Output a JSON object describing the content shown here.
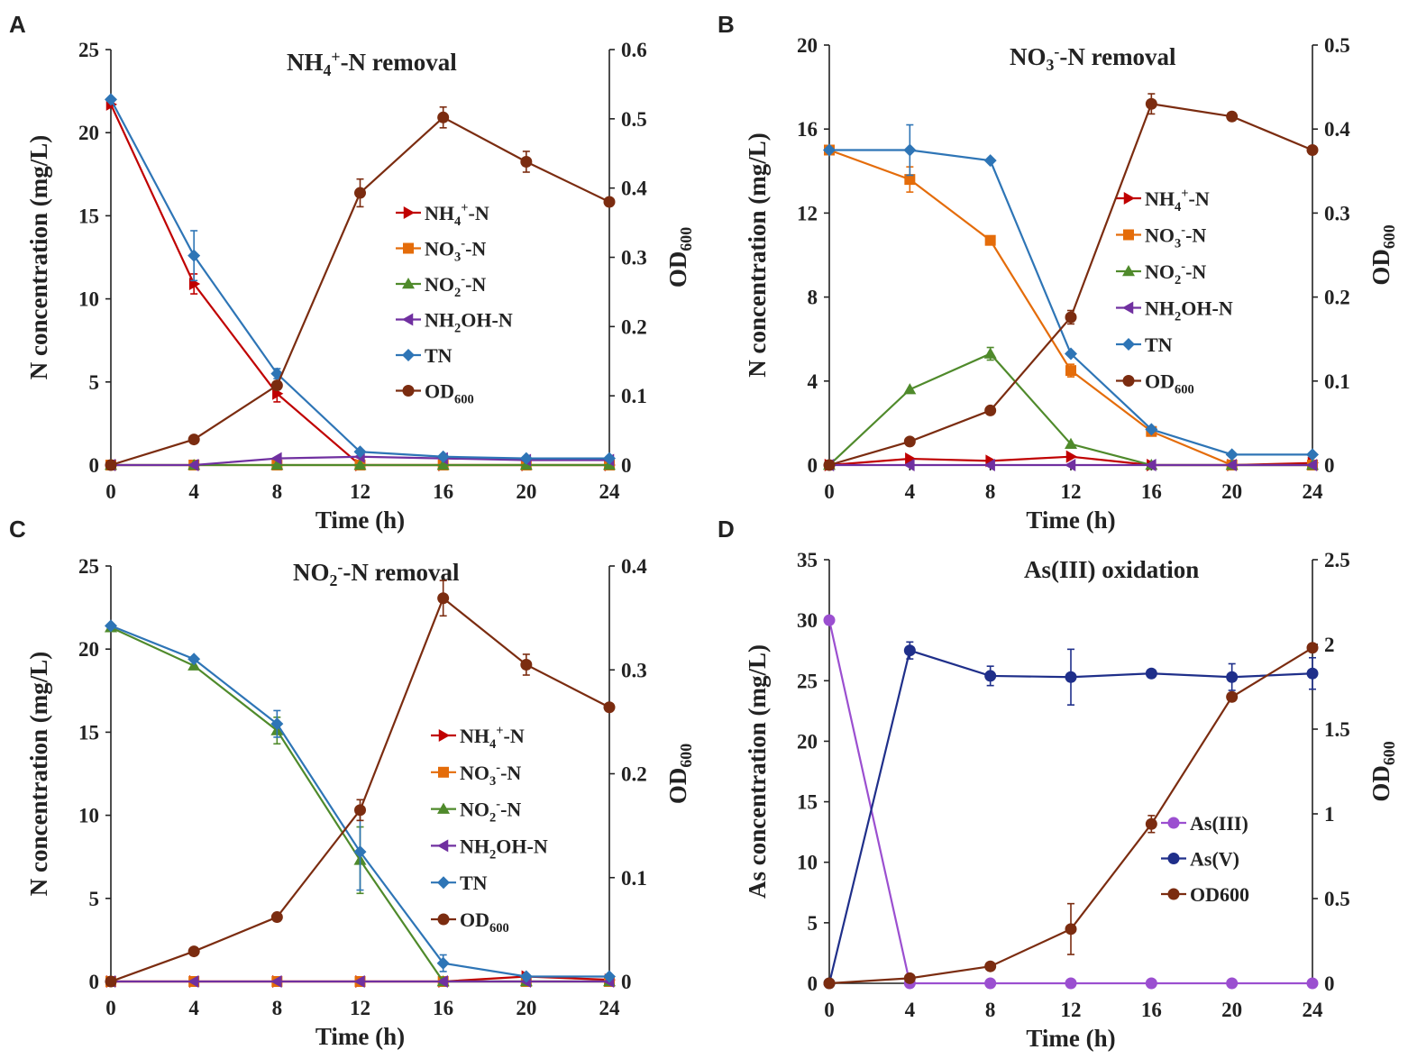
{
  "chart_data": [
    {
      "panel": "A",
      "type": "line",
      "title": "NH4+-N removal",
      "title_parts": [
        [
          "NH",
          ""
        ],
        [
          "4",
          "sub"
        ],
        [
          "+",
          "sup"
        ],
        [
          "-N removal",
          ""
        ]
      ],
      "x": [
        0,
        4,
        8,
        12,
        16,
        20,
        24
      ],
      "x_ticks": [
        0,
        4,
        8,
        12,
        16,
        20,
        24
      ],
      "xlabel": "Time (h)",
      "xlim": [
        0,
        24
      ],
      "ylabel": "N concentration (mg/L)",
      "ylim": [
        0,
        25
      ],
      "y_ticks": [
        0,
        5,
        10,
        15,
        20,
        25
      ],
      "y2label": "OD600",
      "y2label_parts": [
        [
          "OD",
          ""
        ],
        [
          "600",
          "sub"
        ]
      ],
      "y2lim": [
        0,
        0.6
      ],
      "y2_ticks": [
        0,
        0.1,
        0.2,
        0.3,
        0.4,
        0.5,
        0.6
      ],
      "legend_position": "center-right",
      "series": [
        {
          "name": "NH4+-N",
          "label_parts": [
            [
              "NH",
              ""
            ],
            [
              "4",
              "sub"
            ],
            [
              "+",
              "sup"
            ],
            [
              "-N",
              ""
            ]
          ],
          "axis": "left",
          "color": "#c00000",
          "marker": "triangle-right",
          "values": [
            21.7,
            10.9,
            4.3,
            0,
            0,
            0,
            0
          ],
          "errors": [
            0,
            0.6,
            0.5,
            0,
            0,
            0,
            0
          ]
        },
        {
          "name": "NO3--N",
          "label_parts": [
            [
              "NO",
              ""
            ],
            [
              "3",
              "sub"
            ],
            [
              "-",
              "sup"
            ],
            [
              "-N",
              ""
            ]
          ],
          "axis": "left",
          "color": "#e46c0a",
          "marker": "square",
          "values": [
            0,
            0,
            0,
            0,
            0,
            0,
            0
          ],
          "errors": [
            0,
            0,
            0,
            0,
            0,
            0,
            0
          ]
        },
        {
          "name": "NO2--N",
          "label_parts": [
            [
              "NO",
              ""
            ],
            [
              "2",
              "sub"
            ],
            [
              "-",
              "sup"
            ],
            [
              "-N",
              ""
            ]
          ],
          "axis": "left",
          "color": "#4f8a2b",
          "marker": "triangle-up",
          "values": [
            0,
            0,
            0,
            0,
            0,
            0,
            0
          ],
          "errors": [
            0,
            0,
            0,
            0,
            0,
            0,
            0
          ]
        },
        {
          "name": "NH2OH-N",
          "label_parts": [
            [
              "NH",
              ""
            ],
            [
              "2",
              "sub"
            ],
            [
              "OH-N",
              ""
            ]
          ],
          "axis": "left",
          "color": "#7030a0",
          "marker": "triangle-left",
          "values": [
            0,
            0,
            0.4,
            0.5,
            0.4,
            0.3,
            0.3
          ],
          "errors": [
            0,
            0,
            0,
            0,
            0,
            0,
            0
          ]
        },
        {
          "name": "TN",
          "label_parts": [
            [
              "TN",
              ""
            ]
          ],
          "axis": "left",
          "color": "#2e75b6",
          "marker": "diamond",
          "values": [
            22,
            12.6,
            5.5,
            0.8,
            0.5,
            0.4,
            0.4
          ],
          "errors": [
            0,
            1.5,
            0.3,
            0,
            0,
            0,
            0
          ]
        },
        {
          "name": "OD600",
          "label_parts": [
            [
              "OD",
              ""
            ],
            [
              "600",
              "sub"
            ]
          ],
          "axis": "right",
          "color": "#7b2c10",
          "marker": "circle",
          "values": [
            0,
            0.037,
            0.115,
            0.393,
            0.502,
            0.438,
            0.38
          ],
          "errors": [
            0,
            0,
            0,
            0.02,
            0.015,
            0.015,
            0
          ]
        }
      ]
    },
    {
      "panel": "B",
      "type": "line",
      "title": "NO3--N removal",
      "title_parts": [
        [
          "NO",
          ""
        ],
        [
          "3",
          "sub"
        ],
        [
          "-",
          "sup"
        ],
        [
          "-N removal",
          ""
        ]
      ],
      "x": [
        0,
        4,
        8,
        12,
        16,
        20,
        24
      ],
      "x_ticks": [
        0,
        4,
        8,
        12,
        16,
        20,
        24
      ],
      "xlabel": "Time (h)",
      "xlim": [
        0,
        24
      ],
      "ylabel": "N concentration (mg/L)",
      "ylim": [
        0,
        20
      ],
      "y_ticks": [
        0,
        4,
        8,
        12,
        16,
        20
      ],
      "y2label": "OD600",
      "y2label_parts": [
        [
          "OD",
          ""
        ],
        [
          "600",
          "sub"
        ]
      ],
      "y2lim": [
        0,
        0.5
      ],
      "y2_ticks": [
        0,
        0.1,
        0.2,
        0.3,
        0.4,
        0.5
      ],
      "legend_position": "center-right",
      "series": [
        {
          "name": "NH4+-N",
          "label_parts": [
            [
              "NH",
              ""
            ],
            [
              "4",
              "sub"
            ],
            [
              "+",
              "sup"
            ],
            [
              "-N",
              ""
            ]
          ],
          "axis": "left",
          "color": "#c00000",
          "marker": "triangle-right",
          "values": [
            0,
            0.3,
            0.2,
            0.4,
            0,
            0,
            0.1
          ],
          "errors": [
            0,
            0,
            0,
            0,
            0,
            0,
            0
          ]
        },
        {
          "name": "NO3--N",
          "label_parts": [
            [
              "NO",
              ""
            ],
            [
              "3",
              "sub"
            ],
            [
              "-",
              "sup"
            ],
            [
              "-N",
              ""
            ]
          ],
          "axis": "left",
          "color": "#e46c0a",
          "marker": "square",
          "values": [
            15,
            13.6,
            10.7,
            4.5,
            1.6,
            0,
            0
          ],
          "errors": [
            0,
            0.6,
            0,
            0.3,
            0,
            0,
            0
          ]
        },
        {
          "name": "NO2--N",
          "label_parts": [
            [
              "NO",
              ""
            ],
            [
              "2",
              "sub"
            ],
            [
              "-",
              "sup"
            ],
            [
              "-N",
              ""
            ]
          ],
          "axis": "left",
          "color": "#4f8a2b",
          "marker": "triangle-up",
          "values": [
            0,
            3.6,
            5.3,
            1,
            0,
            0,
            0
          ],
          "errors": [
            0,
            0,
            0.3,
            0,
            0,
            0,
            0
          ]
        },
        {
          "name": "NH2OH-N",
          "label_parts": [
            [
              "NH",
              ""
            ],
            [
              "2",
              "sub"
            ],
            [
              "OH-N",
              ""
            ]
          ],
          "axis": "left",
          "color": "#7030a0",
          "marker": "triangle-left",
          "values": [
            0,
            0,
            0,
            0,
            0,
            0,
            0
          ],
          "errors": [
            0,
            0,
            0,
            0,
            0,
            0,
            0
          ]
        },
        {
          "name": "TN",
          "label_parts": [
            [
              "TN",
              ""
            ]
          ],
          "axis": "left",
          "color": "#2e75b6",
          "marker": "diamond",
          "values": [
            15,
            15,
            14.5,
            5.3,
            1.7,
            0.5,
            0.5
          ],
          "errors": [
            0,
            1.2,
            0,
            0,
            0,
            0,
            0
          ]
        },
        {
          "name": "OD600",
          "label_parts": [
            [
              "OD",
              ""
            ],
            [
              "600",
              "sub"
            ]
          ],
          "axis": "right",
          "color": "#7b2c10",
          "marker": "circle",
          "values": [
            0,
            0.028,
            0.065,
            0.176,
            0.43,
            0.415,
            0.375
          ],
          "errors": [
            0,
            0,
            0,
            0.008,
            0.012,
            0,
            0
          ]
        }
      ]
    },
    {
      "panel": "C",
      "type": "line",
      "title": "NO2--N removal",
      "title_parts": [
        [
          "NO",
          ""
        ],
        [
          "2",
          "sub"
        ],
        [
          "-",
          "sup"
        ],
        [
          "-N removal",
          ""
        ]
      ],
      "x": [
        0,
        4,
        8,
        12,
        16,
        20,
        24
      ],
      "x_ticks": [
        0,
        4,
        8,
        12,
        16,
        20,
        24
      ],
      "xlabel": "Time (h)",
      "xlim": [
        0,
        24
      ],
      "ylabel": "N concentration (mg/L)",
      "ylim": [
        0,
        25
      ],
      "y_ticks": [
        0,
        5,
        10,
        15,
        20,
        25
      ],
      "y2label": "OD600",
      "y2label_parts": [
        [
          "OD",
          ""
        ],
        [
          "600",
          "sub"
        ]
      ],
      "y2lim": [
        0,
        0.4
      ],
      "y2_ticks": [
        0,
        0.1,
        0.2,
        0.3,
        0.4
      ],
      "legend_position": "center-right",
      "series": [
        {
          "name": "NH4+-N",
          "label_parts": [
            [
              "NH",
              ""
            ],
            [
              "4",
              "sub"
            ],
            [
              "+",
              "sup"
            ],
            [
              "-N",
              ""
            ]
          ],
          "axis": "left",
          "color": "#c00000",
          "marker": "triangle-right",
          "values": [
            0,
            0,
            0,
            0,
            0,
            0.3,
            0.1
          ],
          "errors": [
            0,
            0,
            0,
            0,
            0,
            0,
            0
          ]
        },
        {
          "name": "NO3--N",
          "label_parts": [
            [
              "NO",
              ""
            ],
            [
              "3",
              "sub"
            ],
            [
              "-",
              "sup"
            ],
            [
              "-N",
              ""
            ]
          ],
          "axis": "left",
          "color": "#e46c0a",
          "marker": "square",
          "values": [
            0,
            0,
            0,
            0,
            0,
            0,
            0
          ],
          "errors": [
            0,
            0,
            0,
            0,
            0,
            0,
            0
          ]
        },
        {
          "name": "NO2--N",
          "label_parts": [
            [
              "NO",
              ""
            ],
            [
              "2",
              "sub"
            ],
            [
              "-",
              "sup"
            ],
            [
              "-N",
              ""
            ]
          ],
          "axis": "left",
          "color": "#4f8a2b",
          "marker": "triangle-up",
          "values": [
            21.3,
            19,
            15.1,
            7.3,
            0,
            0,
            0
          ],
          "errors": [
            0,
            0,
            0.8,
            2,
            0,
            0,
            0
          ]
        },
        {
          "name": "NH2OH-N",
          "label_parts": [
            [
              "NH",
              ""
            ],
            [
              "2",
              "sub"
            ],
            [
              "OH-N",
              ""
            ]
          ],
          "axis": "left",
          "color": "#7030a0",
          "marker": "triangle-left",
          "values": [
            0,
            0,
            0,
            0,
            0,
            0,
            0
          ],
          "errors": [
            0,
            0,
            0,
            0,
            0,
            0,
            0
          ]
        },
        {
          "name": "TN",
          "label_parts": [
            [
              "TN",
              ""
            ]
          ],
          "axis": "left",
          "color": "#2e75b6",
          "marker": "diamond",
          "values": [
            21.4,
            19.4,
            15.5,
            7.8,
            1.1,
            0.3,
            0.3
          ],
          "errors": [
            0,
            0,
            0.8,
            2.3,
            0.5,
            0,
            0
          ]
        },
        {
          "name": "OD600",
          "label_parts": [
            [
              "OD",
              ""
            ],
            [
              "600",
              "sub"
            ]
          ],
          "axis": "right",
          "color": "#7b2c10",
          "marker": "circle",
          "values": [
            0,
            0.029,
            0.062,
            0.165,
            0.369,
            0.305,
            0.264
          ],
          "errors": [
            0,
            0,
            0,
            0.01,
            0.017,
            0.01,
            0
          ]
        }
      ]
    },
    {
      "panel": "D",
      "type": "line",
      "title": "As(III) oxidation",
      "title_parts": [
        [
          "As(III) oxidation",
          ""
        ]
      ],
      "x": [
        0,
        4,
        8,
        12,
        16,
        20,
        24
      ],
      "x_ticks": [
        0,
        4,
        8,
        12,
        16,
        20,
        24
      ],
      "xlabel": "Time (h)",
      "xlim": [
        0,
        24
      ],
      "ylabel": "As concentration (mg/L)",
      "ylim": [
        0,
        35
      ],
      "y_ticks": [
        0,
        5,
        10,
        15,
        20,
        25,
        30,
        35
      ],
      "y2label": "OD600",
      "y2label_parts": [
        [
          "OD",
          ""
        ],
        [
          "600",
          "sub"
        ]
      ],
      "y2lim": [
        0,
        2.5
      ],
      "y2_ticks": [
        0,
        0.5,
        1,
        1.5,
        2,
        2.5
      ],
      "legend_position": "lower-right",
      "series": [
        {
          "name": "As(III)",
          "label_parts": [
            [
              "As(III)",
              ""
            ]
          ],
          "axis": "left",
          "color": "#9b4fd0",
          "marker": "circle",
          "values": [
            30,
            0,
            0,
            0,
            0,
            0,
            0
          ],
          "errors": [
            0,
            0,
            0,
            0,
            0,
            0,
            0
          ]
        },
        {
          "name": "As(V)",
          "label_parts": [
            [
              "As(V)",
              ""
            ]
          ],
          "axis": "left",
          "color": "#1f2f8a",
          "marker": "circle",
          "values": [
            0,
            27.5,
            25.4,
            25.3,
            25.6,
            25.3,
            25.6
          ],
          "errors": [
            0,
            0.7,
            0.8,
            2.3,
            0,
            1.1,
            1.3
          ]
        },
        {
          "name": "OD600",
          "label_parts": [
            [
              "OD600",
              ""
            ]
          ],
          "axis": "right",
          "color": "#7b2c10",
          "marker": "circle",
          "values": [
            0,
            0.03,
            0.1,
            0.32,
            0.94,
            1.69,
            1.98
          ],
          "errors": [
            0,
            0,
            0,
            0.15,
            0.05,
            0,
            0
          ]
        }
      ]
    }
  ]
}
